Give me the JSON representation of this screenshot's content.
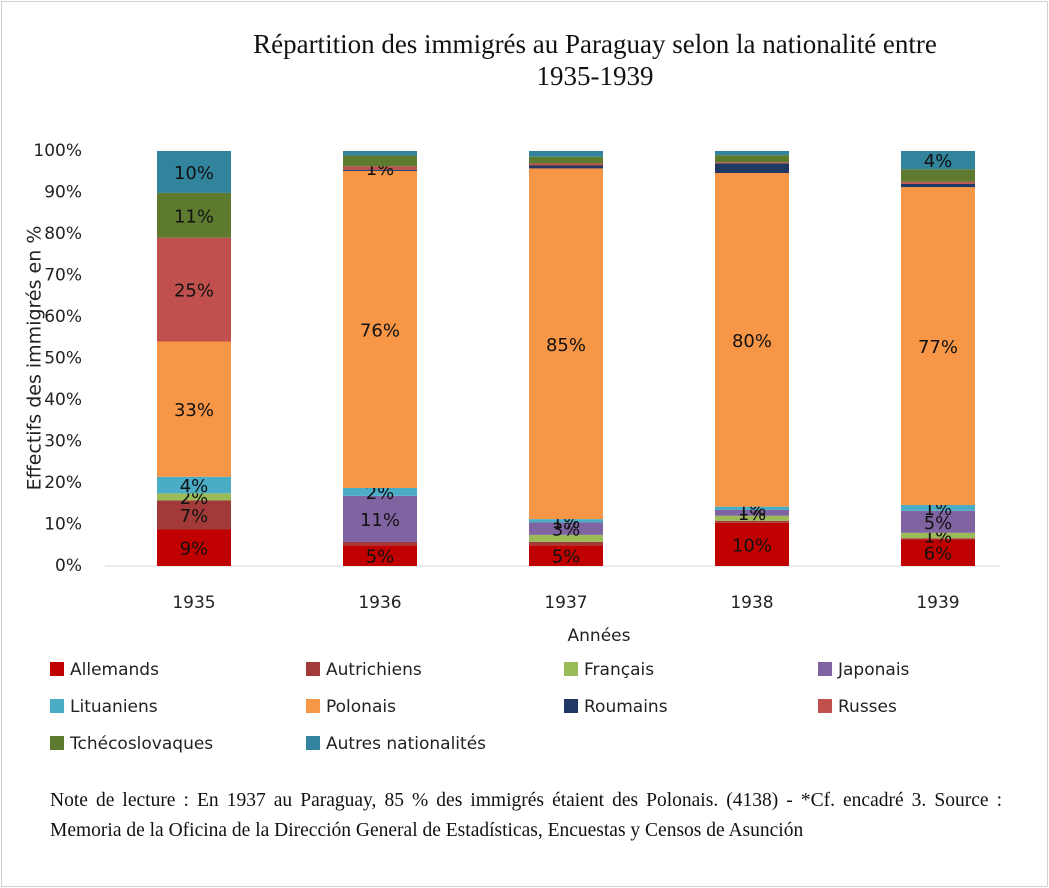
{
  "chart_data": {
    "type": "stacked_bar",
    "title": "Répartition des immigrés  au Paraguay selon la nationalité entre\n1935-1939",
    "x_label": "Années",
    "y_label": "Effectifs des immigrés en %",
    "categories": [
      "1935",
      "1936",
      "1937",
      "1938",
      "1939"
    ],
    "ylim": [
      0,
      100
    ],
    "yticks": [
      {
        "value": 0,
        "label": "0%"
      },
      {
        "value": 10,
        "label": "10%"
      },
      {
        "value": 20,
        "label": "20%"
      },
      {
        "value": 30,
        "label": "30%"
      },
      {
        "value": 40,
        "label": "40%"
      },
      {
        "value": 50,
        "label": "50%"
      },
      {
        "value": 60,
        "label": "60%"
      },
      {
        "value": 70,
        "label": "70%"
      },
      {
        "value": 80,
        "label": "80%"
      },
      {
        "value": 90,
        "label": "90%"
      },
      {
        "value": 100,
        "label": "100%"
      }
    ],
    "grid": false,
    "legend": "bottom",
    "series": [
      {
        "name": "Allemands",
        "color": "#c00000",
        "values": [
          8.8,
          5.0,
          5.0,
          10.4,
          6.4
        ],
        "value_labels": [
          "9%",
          "5%",
          "5%",
          "10%",
          "6%"
        ]
      },
      {
        "name": "Autrichiens",
        "color": "#a33a3a",
        "values": [
          7.0,
          0.8,
          0.8,
          0.5,
          0.3
        ],
        "value_labels": [
          "7%",
          null,
          null,
          null,
          null
        ]
      },
      {
        "name": "Français",
        "color": "#9bbb59",
        "values": [
          1.7,
          0,
          1.7,
          1.2,
          1.3
        ],
        "value_labels": [
          "2%",
          null,
          null,
          null,
          "1%"
        ]
      },
      {
        "name": "Japonais",
        "color": "#8064a2",
        "values": [
          0,
          11.1,
          3.0,
          1.4,
          5.3
        ],
        "value_labels": [
          null,
          "11%",
          "3%",
          "1%",
          "5%"
        ]
      },
      {
        "name": "Lituaniens",
        "color": "#4bacc6",
        "values": [
          4.0,
          1.9,
          0.8,
          0.8,
          1.4
        ],
        "value_labels": [
          "4%",
          "2%",
          "1%",
          "1%",
          "1%"
        ]
      },
      {
        "name": "Polonais",
        "color": "#f79646",
        "values": [
          32.6,
          76.4,
          84.5,
          80.4,
          76.6
        ],
        "value_labels": [
          "33%",
          "76%",
          "85%",
          "80%",
          "77%"
        ]
      },
      {
        "name": "Roumains",
        "color": "#1f3864",
        "values": [
          0,
          0.3,
          0.7,
          2.3,
          0.8
        ],
        "value_labels": [
          null,
          null,
          null,
          null,
          null
        ]
      },
      {
        "name": "Russes",
        "color": "#c0504d",
        "values": [
          25.0,
          0.8,
          0.5,
          0.3,
          0.5
        ],
        "value_labels": [
          "25%",
          "1%",
          null,
          null,
          null
        ]
      },
      {
        "name": "Tchécoslovaques",
        "color": "#5e7a2e",
        "values": [
          10.8,
          2.6,
          1.6,
          1.7,
          3.0
        ],
        "value_labels": [
          "11%",
          null,
          null,
          null,
          null
        ]
      },
      {
        "name": "Autres nationalités",
        "color": "#31849b",
        "values": [
          10.1,
          1.1,
          1.4,
          1.0,
          4.4
        ],
        "value_labels": [
          "10%",
          null,
          null,
          null,
          "4%"
        ]
      }
    ],
    "note": "Note de lecture : En 1937 au Paraguay, 85 % des immigrés étaient des Polonais. (4138) - *Cf. encadré 3. Source : Memoria de la Oficina de la Dirección General de Estadísticas, Encuestas y Censos de Asunción"
  }
}
